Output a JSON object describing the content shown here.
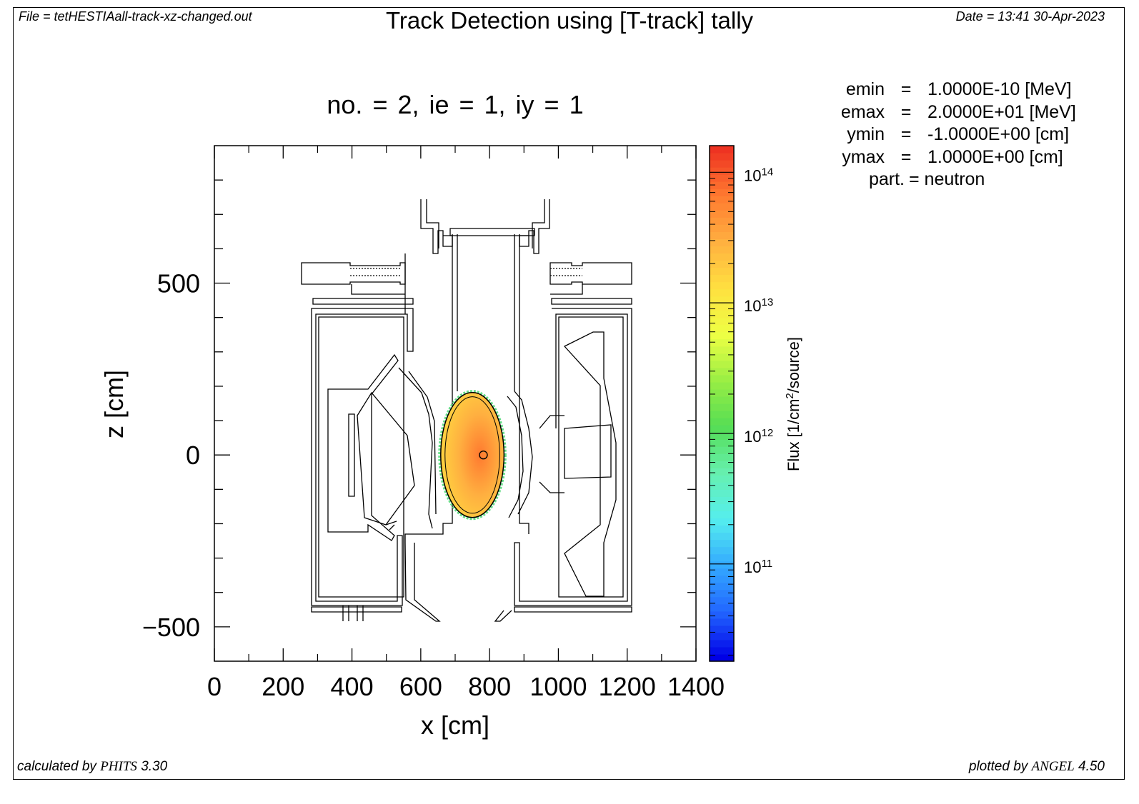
{
  "header": {
    "file": "File = tetHESTIAall-track-xz-changed.out",
    "title": "Track Detection using [T-track] tally",
    "date": "Date = 13:41 30-Apr-2023"
  },
  "footer": {
    "left_prefix": "calculated by ",
    "left_brand": "PHITS",
    "left_version": " 3.30",
    "right_prefix": "plotted by ",
    "right_brand": "ANGEL",
    "right_version": " 4.50"
  },
  "params": [
    {
      "key": "emin",
      "value": "1.0000E-10 [MeV]"
    },
    {
      "key": "emax",
      "value": "2.0000E+01 [MeV]"
    },
    {
      "key": "ymin",
      "value": "-1.0000E+00 [cm]"
    },
    {
      "key": "ymax",
      "value": "1.0000E+00 [cm]"
    },
    {
      "key": "part.",
      "value": "neutron"
    }
  ],
  "chart_data": {
    "type": "heatmap",
    "title": "Track Detection using [T-track] tally",
    "subtitle": "no. =  2,  ie =  1,  iy =  1",
    "xlabel": "x [cm]",
    "ylabel": "z [cm]",
    "xlim": [
      0,
      1400
    ],
    "ylim": [
      -600,
      900
    ],
    "x_ticks": [
      0,
      200,
      400,
      600,
      800,
      1000,
      1200,
      1400
    ],
    "y_ticks": [
      -500,
      0,
      500
    ],
    "colorbar": {
      "label": "Flux [1/cm2/source]",
      "label_main": "Flux [1/cm",
      "label_sup": "2",
      "label_tail": "/source]",
      "scale": "log",
      "range": [
        18000000000.0,
        160000000000000.0
      ],
      "ticks": [
        {
          "base": "10",
          "exp": "11",
          "value": 100000000000.0
        },
        {
          "base": "10",
          "exp": "12",
          "value": 1000000000000.0
        },
        {
          "base": "10",
          "exp": "13",
          "value": 10000000000000.0
        },
        {
          "base": "10",
          "exp": "14",
          "value": 100000000000000.0
        }
      ],
      "colors": [
        "#0000e6",
        "#2266ff",
        "#33aaff",
        "#55eeee",
        "#66f0b0",
        "#55dd55",
        "#99ee44",
        "#eeff44",
        "#ffe040",
        "#ffb040",
        "#ff7a30",
        "#ee3322"
      ]
    },
    "flux_region": {
      "shape": "ellipse",
      "center_x": 750,
      "center_z": 0,
      "radius_x": 92,
      "radius_z": 182,
      "flux_peak": 40000000000000.0,
      "flux_edge": 15000000000000.0
    },
    "source_marker": {
      "x": 782,
      "z": 0
    }
  }
}
